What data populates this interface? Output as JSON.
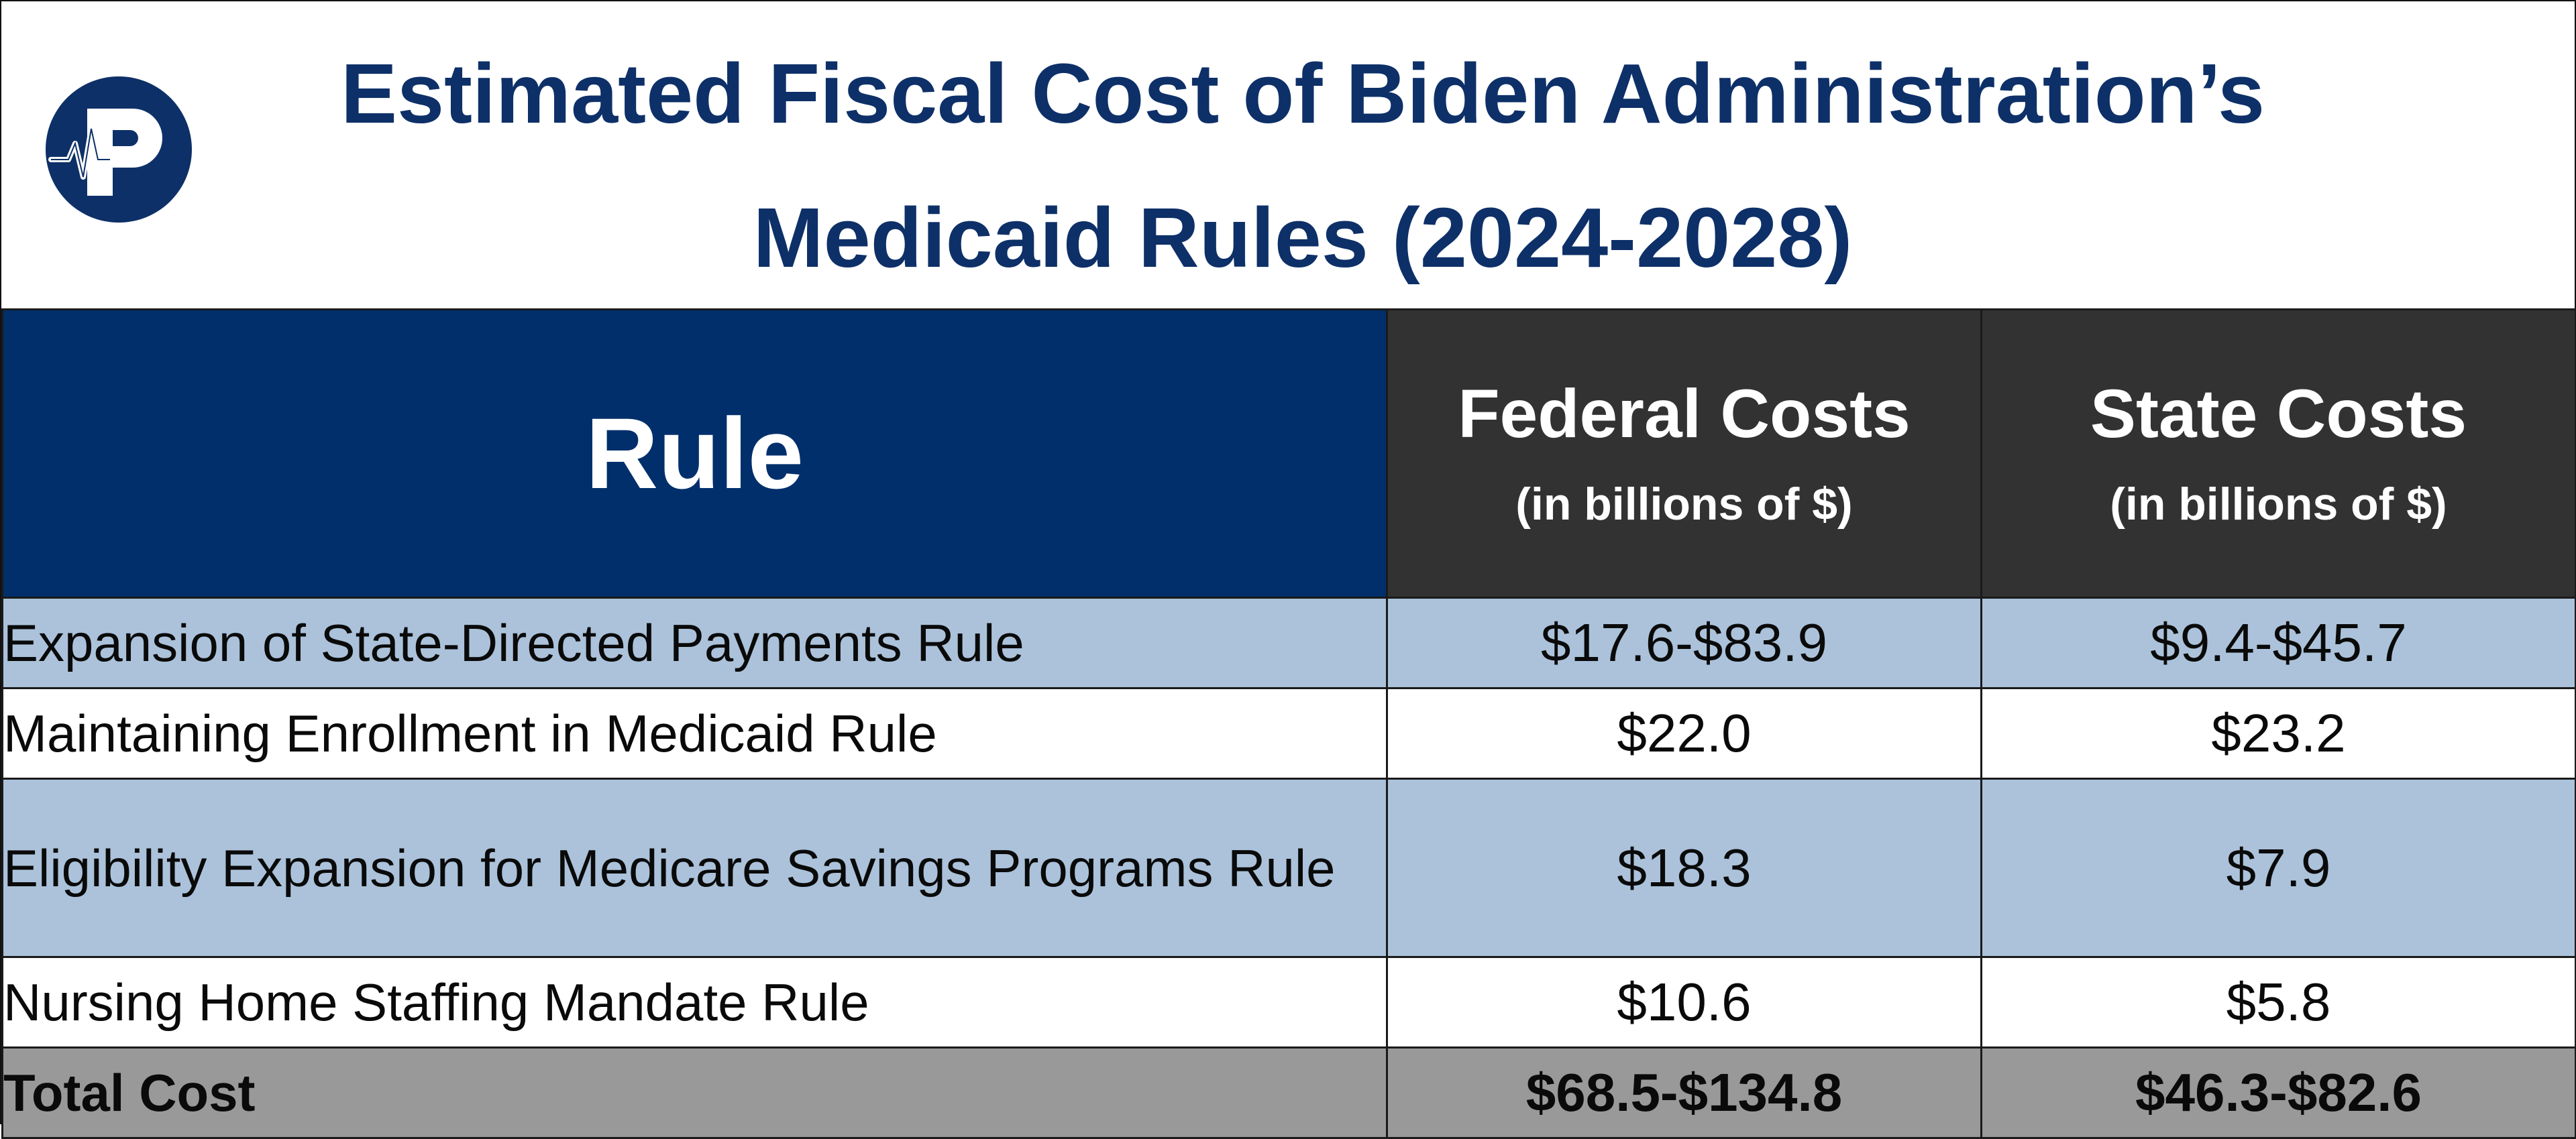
{
  "title": "Estimated Fiscal Cost of Biden Administration’s Medicaid Rules (2024-2028)",
  "logo": {
    "icon": "heartbeat-p-logo-icon",
    "letter": "P",
    "color": "#0e3068"
  },
  "colors": {
    "title": "#0e3068",
    "rule_header_bg": "#002f6c",
    "cost_header_bg": "#323232",
    "shaded_row_bg": "#abc2da",
    "total_row_bg": "#999999"
  },
  "chart_data": {
    "type": "table",
    "title": "Estimated Fiscal Cost of Biden Administration’s Medicaid Rules (2024-2028)",
    "columns": [
      {
        "label": "Rule",
        "sublabel": ""
      },
      {
        "label": "Federal Costs",
        "sublabel": "(in billions of $)"
      },
      {
        "label": "State Costs",
        "sublabel": "(in billions of $)"
      }
    ],
    "rows": [
      {
        "rule": "Expansion of State-Directed Payments Rule",
        "federal": "$17.6-$83.9",
        "state": "$9.4-$45.7"
      },
      {
        "rule": "Maintaining Enrollment in Medicaid Rule",
        "federal": "$22.0",
        "state": "$23.2"
      },
      {
        "rule": "Eligibility Expansion for Medicare Savings Programs Rule",
        "federal": "$18.3",
        "state": "$7.9"
      },
      {
        "rule": "Nursing Home Staffing Mandate Rule",
        "federal": "$10.6",
        "state": "$5.8"
      }
    ],
    "total": {
      "rule": "Total Cost",
      "federal": "$68.5-$134.8",
      "state": "$46.3-$82.6"
    }
  }
}
